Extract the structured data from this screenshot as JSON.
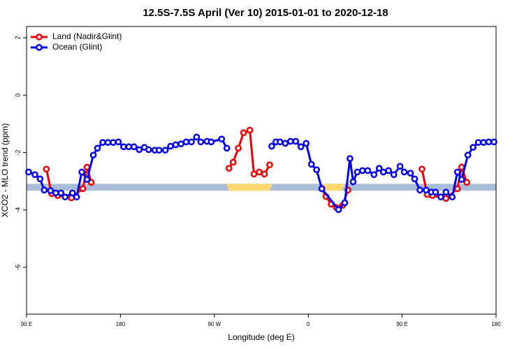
{
  "chart_data": {
    "type": "line",
    "title": "12.5S-7.5S April (Ver 10)   2015-01-01 to 2020-12-18",
    "xlabel": "Longitude (deg E)",
    "ylabel": "XCO2 - MLO trend (ppm)",
    "xlim": [
      90,
      540
    ],
    "ylim": [
      -7.63,
      2.39
    ],
    "xticks": [
      {
        "value": 90,
        "label": "90 E"
      },
      180,
      {
        "value": 270,
        "label": "90 W"
      },
      {
        "value": 360,
        "label": "0"
      },
      {
        "value": 450,
        "label": "90 E"
      },
      {
        "value": 540,
        "label": "180"
      }
    ],
    "yticks": [
      2,
      0,
      -2,
      -4,
      -6
    ],
    "legend": "top-left",
    "reference_band": {
      "color": "#a9bcd9",
      "range": [
        -3.33,
        -3.09
      ]
    },
    "highlight": {
      "color": "#ffd970",
      "ranges": [
        [
          281.5,
          325.7
        ],
        [
          374,
          395
        ]
      ]
    },
    "series": [
      {
        "name": "Land (Nadir&Glint)",
        "color": "#ee0000",
        "x": [
          109,
          114,
          120,
          133,
          144,
          148,
          152,
          null,
          284,
          288,
          293,
          298,
          304,
          308,
          313,
          318,
          323,
          null,
          373,
          377,
          382,
          387,
          393,
          398,
          null,
          469,
          474,
          479,
          492,
          503,
          507,
          512
        ],
        "values": [
          -2.58,
          -3.43,
          -3.5,
          -3.58,
          -3.26,
          -2.51,
          -3.04,
          null,
          -2.55,
          -2.34,
          -1.85,
          -1.31,
          -1.22,
          -2.75,
          -2.68,
          -2.75,
          -2.43,
          null,
          -3.26,
          -3.53,
          -3.8,
          -3.92,
          -3.84,
          -3.31,
          null,
          -2.58,
          -3.46,
          -3.5,
          -3.6,
          -3.26,
          -2.51,
          -3.04
        ]
      },
      {
        "name": "Ocean (Glint)",
        "color": "#0000ee",
        "x": [
          92,
          98,
          103,
          107,
          113,
          118,
          123,
          127,
          134,
          138,
          143,
          148,
          154,
          158,
          163,
          168,
          173,
          178,
          183,
          188,
          193,
          198,
          203,
          207,
          213,
          217,
          223,
          228,
          233,
          238,
          243,
          248,
          253,
          257,
          263,
          267,
          277,
          282,
          null,
          325,
          329,
          333,
          338,
          343,
          348,
          353,
          358,
          363,
          368,
          373,
          389,
          395,
          400,
          403,
          407,
          412,
          417,
          423,
          428,
          432,
          437,
          442,
          448,
          452,
          458,
          462,
          467,
          473,
          478,
          482,
          487,
          492,
          498,
          503,
          507,
          513,
          518,
          523,
          528,
          533,
          538
        ],
        "values": [
          -2.68,
          -2.77,
          -2.92,
          -3.31,
          -3.33,
          -3.41,
          -3.41,
          -3.55,
          -3.41,
          -3.55,
          -2.68,
          -2.94,
          -2.09,
          -1.85,
          -1.65,
          -1.65,
          -1.65,
          -1.63,
          -1.8,
          -1.8,
          -1.8,
          -1.9,
          -1.82,
          -1.9,
          -1.92,
          -1.92,
          -1.92,
          -1.78,
          -1.73,
          -1.7,
          -1.63,
          -1.63,
          -1.46,
          -1.63,
          -1.61,
          -1.63,
          -1.53,
          -1.85,
          null,
          -1.78,
          -1.63,
          -1.63,
          -1.68,
          -1.61,
          -1.61,
          -1.8,
          -1.68,
          -2.41,
          -2.6,
          -3.26,
          -3.99,
          -3.75,
          -2.21,
          -3.02,
          -2.68,
          -2.63,
          -2.63,
          -2.77,
          -2.55,
          -2.68,
          -2.63,
          -2.77,
          -2.48,
          -2.68,
          -2.72,
          -2.92,
          -3.31,
          -3.31,
          -3.38,
          -3.38,
          -3.55,
          -3.38,
          -3.55,
          -2.68,
          -2.94,
          -2.09,
          -1.82,
          -1.65,
          -1.65,
          -1.63,
          -1.63
        ]
      }
    ]
  }
}
